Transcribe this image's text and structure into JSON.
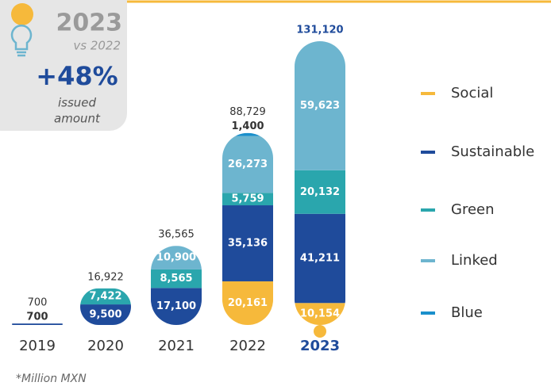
{
  "badge": {
    "year": "2023",
    "compare": "vs 2022",
    "change": "+48%",
    "caption": [
      "issued",
      "amount"
    ]
  },
  "chart_data": {
    "type": "stacked_bar",
    "categories": [
      "2019",
      "2020",
      "2021",
      "2022",
      "2023"
    ],
    "series": [
      {
        "name": "Social",
        "color": "#f6b93b",
        "values": [
          null,
          null,
          null,
          20161,
          10154
        ],
        "value_labels": [
          null,
          null,
          null,
          "20,161",
          "10,154"
        ]
      },
      {
        "name": "Sustainable",
        "color": "#1f4b9b",
        "values": [
          700,
          9500,
          17100,
          35136,
          41211
        ],
        "value_labels": [
          "700",
          "9,500",
          "17,100",
          "35,136",
          "41,211"
        ]
      },
      {
        "name": "Green",
        "color": "#2aa6ad",
        "values": [
          null,
          7422,
          8565,
          5759,
          20132
        ],
        "value_labels": [
          null,
          "7,422",
          "8,565",
          "5,759",
          "20,132"
        ]
      },
      {
        "name": "Linked",
        "color": "#6db5cf",
        "values": [
          null,
          null,
          10900,
          26273,
          59623
        ],
        "value_labels": [
          null,
          null,
          "10,900",
          "26,273",
          "59,623"
        ]
      },
      {
        "name": "Blue",
        "color": "#1a8fcb",
        "values": [
          null,
          null,
          null,
          1400,
          null
        ],
        "value_labels": [
          null,
          null,
          null,
          "1,400",
          null
        ]
      }
    ],
    "totals": [
      700,
      16922,
      36565,
      88729,
      131120
    ],
    "total_labels": [
      "700",
      "16,922",
      "36,565",
      "88,729",
      "131,120"
    ],
    "footnote": "*Million MXN"
  }
}
